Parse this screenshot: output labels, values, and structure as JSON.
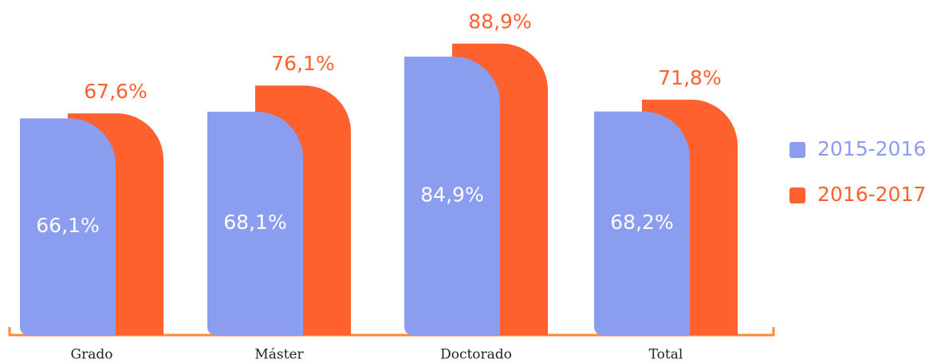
{
  "chart_data": {
    "type": "bar",
    "categories": [
      "Grado",
      "Máster",
      "Doctorado",
      "Total"
    ],
    "series": [
      {
        "name": "2015-2016",
        "color": "#8b9def",
        "values": [
          66.1,
          68.1,
          84.9,
          68.2
        ],
        "value_labels": [
          "66,1%",
          "68,1%",
          "84,9%",
          "68,2%"
        ]
      },
      {
        "name": "2016-2017",
        "color": "#fe612e",
        "values": [
          67.6,
          76.1,
          88.9,
          71.8
        ],
        "value_labels": [
          "67,6%",
          "76,1%",
          "88,9%",
          "71,8%"
        ]
      }
    ],
    "legend": "right"
  }
}
